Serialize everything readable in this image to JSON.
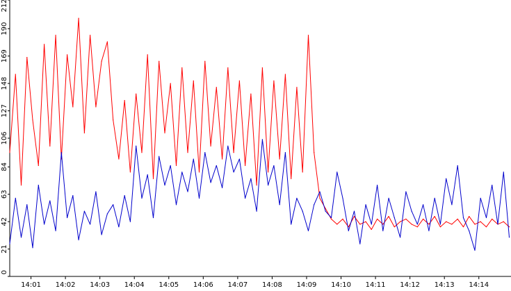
{
  "chart_data": {
    "type": "line",
    "title": "",
    "xlabel": "",
    "ylabel": "",
    "ylim": [
      0,
      212
    ],
    "y_ticks": [
      0,
      21,
      42,
      63,
      84,
      106,
      127,
      148,
      169,
      190,
      212
    ],
    "y_tick_labels": [
      "0",
      "21",
      "42",
      "63",
      "84",
      "106",
      "127",
      "148",
      "169",
      "190",
      "212"
    ],
    "xlim": [
      "14:00:23",
      "14:14:56"
    ],
    "x_ticks": [
      "14:01:00",
      "14:02:00",
      "14:03:00",
      "14:04:00",
      "14:05:00",
      "14:06:00",
      "14:07:00",
      "14:08:00",
      "14:09:00",
      "14:10:00",
      "14:11:00",
      "14:12:00",
      "14:13:00",
      "14:14:00"
    ],
    "x_tick_labels": [
      "14:01",
      "14:02",
      "14:03",
      "14:04",
      "14:05",
      "14:06",
      "14:07",
      "14:08",
      "14:09",
      "14:10",
      "14:11",
      "14:12",
      "14:13",
      "14:14"
    ],
    "grid": false,
    "legend": "none",
    "series": [
      {
        "color": "#ff0000",
        "x": [
          "14:00:23",
          "14:00:33",
          "14:00:43",
          "14:00:53",
          "14:01:03",
          "14:01:13",
          "14:01:23",
          "14:01:33",
          "14:01:43",
          "14:01:53",
          "14:02:03",
          "14:02:13",
          "14:02:23",
          "14:02:33",
          "14:02:43",
          "14:02:53",
          "14:03:03",
          "14:03:13",
          "14:03:23",
          "14:03:33",
          "14:03:43",
          "14:03:53",
          "14:04:03",
          "14:04:13",
          "14:04:23",
          "14:04:33",
          "14:04:43",
          "14:04:53",
          "14:05:03",
          "14:05:13",
          "14:05:23",
          "14:05:33",
          "14:05:43",
          "14:05:53",
          "14:06:03",
          "14:06:13",
          "14:06:23",
          "14:06:33",
          "14:06:43",
          "14:06:53",
          "14:07:03",
          "14:07:13",
          "14:07:23",
          "14:07:33",
          "14:07:43",
          "14:07:53",
          "14:08:03",
          "14:08:13",
          "14:08:23",
          "14:08:33",
          "14:08:43",
          "14:08:53",
          "14:09:03",
          "14:09:13",
          "14:09:23",
          "14:09:33",
          "14:09:43",
          "14:09:53",
          "14:10:03",
          "14:10:13",
          "14:10:23",
          "14:10:33",
          "14:10:43",
          "14:10:53",
          "14:11:03",
          "14:11:13",
          "14:11:23",
          "14:11:33",
          "14:11:43",
          "14:11:53",
          "14:12:03",
          "14:12:13",
          "14:12:23",
          "14:12:33",
          "14:12:43",
          "14:12:53",
          "14:13:03",
          "14:13:13",
          "14:13:23",
          "14:13:33",
          "14:13:43",
          "14:13:53",
          "14:14:03",
          "14:14:13",
          "14:14:23",
          "14:14:33",
          "14:14:43",
          "14:14:53"
        ],
        "values": [
          95,
          155,
          70,
          168,
          120,
          85,
          178,
          100,
          185,
          90,
          170,
          130,
          198,
          110,
          185,
          130,
          165,
          180,
          120,
          90,
          135,
          80,
          140,
          95,
          170,
          75,
          165,
          110,
          148,
          85,
          160,
          95,
          150,
          80,
          165,
          100,
          145,
          90,
          160,
          95,
          150,
          85,
          140,
          70,
          160,
          80,
          150,
          90,
          155,
          75,
          145,
          80,
          185,
          95,
          60,
          52,
          44,
          40,
          44,
          38,
          46,
          40,
          42,
          36,
          44,
          40,
          46,
          38,
          42,
          44,
          40,
          38,
          44,
          40,
          46,
          38,
          42,
          40,
          44,
          38,
          46,
          40,
          42,
          38,
          44,
          40,
          42,
          38
        ]
      },
      {
        "color": "#0000cc",
        "x": [
          "14:00:23",
          "14:00:33",
          "14:00:43",
          "14:00:53",
          "14:01:03",
          "14:01:13",
          "14:01:23",
          "14:01:33",
          "14:01:43",
          "14:01:53",
          "14:02:03",
          "14:02:13",
          "14:02:23",
          "14:02:33",
          "14:02:43",
          "14:02:53",
          "14:03:03",
          "14:03:13",
          "14:03:23",
          "14:03:33",
          "14:03:43",
          "14:03:53",
          "14:04:03",
          "14:04:13",
          "14:04:23",
          "14:04:33",
          "14:04:43",
          "14:04:53",
          "14:05:03",
          "14:05:13",
          "14:05:23",
          "14:05:33",
          "14:05:43",
          "14:05:53",
          "14:06:03",
          "14:06:13",
          "14:06:23",
          "14:06:33",
          "14:06:43",
          "14:06:53",
          "14:07:03",
          "14:07:13",
          "14:07:23",
          "14:07:33",
          "14:07:43",
          "14:07:53",
          "14:08:03",
          "14:08:13",
          "14:08:23",
          "14:08:33",
          "14:08:43",
          "14:08:53",
          "14:09:03",
          "14:09:13",
          "14:09:23",
          "14:09:33",
          "14:09:43",
          "14:09:53",
          "14:10:03",
          "14:10:13",
          "14:10:23",
          "14:10:33",
          "14:10:43",
          "14:10:53",
          "14:11:03",
          "14:11:13",
          "14:11:23",
          "14:11:33",
          "14:11:43",
          "14:11:53",
          "14:12:03",
          "14:12:13",
          "14:12:23",
          "14:12:33",
          "14:12:43",
          "14:12:53",
          "14:13:03",
          "14:13:13",
          "14:13:23",
          "14:13:33",
          "14:13:43",
          "14:13:53",
          "14:14:03",
          "14:14:13",
          "14:14:23",
          "14:14:33",
          "14:14:43",
          "14:14:53"
        ],
        "values": [
          25,
          60,
          30,
          55,
          22,
          70,
          40,
          58,
          35,
          95,
          45,
          62,
          28,
          50,
          40,
          65,
          32,
          48,
          55,
          38,
          62,
          42,
          100,
          60,
          78,
          45,
          92,
          70,
          85,
          55,
          80,
          65,
          90,
          60,
          95,
          72,
          85,
          68,
          100,
          80,
          90,
          60,
          75,
          50,
          105,
          70,
          85,
          55,
          95,
          40,
          60,
          50,
          35,
          55,
          65,
          50,
          45,
          80,
          60,
          35,
          50,
          25,
          55,
          40,
          70,
          35,
          60,
          45,
          30,
          65,
          50,
          40,
          55,
          35,
          60,
          40,
          75,
          55,
          85,
          45,
          35,
          20,
          60,
          45,
          70,
          40,
          80,
          30
        ]
      }
    ]
  }
}
